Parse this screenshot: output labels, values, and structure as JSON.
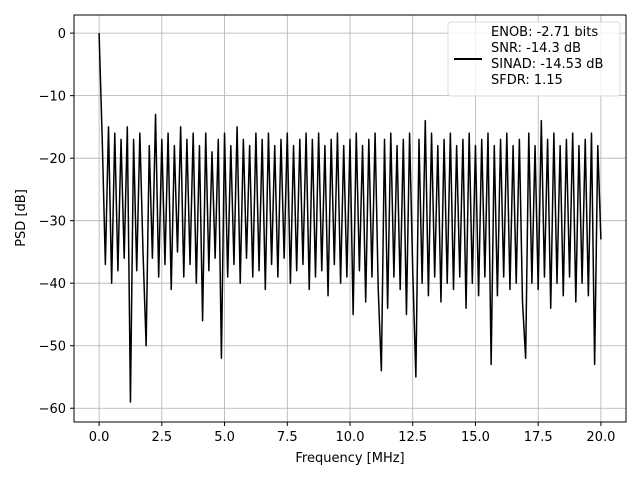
{
  "chart_data": {
    "type": "line",
    "xlabel": "Frequency [MHz]",
    "ylabel": "PSD [dB]",
    "xlim": [
      -1,
      21
    ],
    "ylim": [
      -62.2,
      2.9
    ],
    "grid": true,
    "legend": "upper right",
    "xticks": [
      {
        "value": 0,
        "label": "0.0"
      },
      2.5,
      {
        "value": 5,
        "label": "5.0"
      },
      7.5,
      {
        "value": 10,
        "label": "10.0"
      },
      12.5,
      {
        "value": 15,
        "label": "15.0"
      },
      17.5,
      {
        "value": 20,
        "label": "20.0"
      }
    ],
    "yticks": [
      {
        "value": -60,
        "label": "−60"
      },
      {
        "value": -50,
        "label": "−50"
      },
      {
        "value": -40,
        "label": "−40"
      },
      {
        "value": -30,
        "label": "−30"
      },
      {
        "value": -20,
        "label": "−20"
      },
      {
        "value": -10,
        "label": "−10"
      },
      0
    ],
    "x": [
      0,
      0.125,
      0.25,
      0.375,
      0.5,
      0.625,
      0.75,
      0.875,
      1,
      1.125,
      1.25,
      1.375,
      1.5,
      1.625,
      1.75,
      1.875,
      2,
      2.125,
      2.25,
      2.375,
      2.5,
      2.625,
      2.75,
      2.875,
      3,
      3.125,
      3.25,
      3.375,
      3.5,
      3.625,
      3.75,
      3.875,
      4,
      4.125,
      4.25,
      4.375,
      4.5,
      4.625,
      4.75,
      4.875,
      5,
      5.125,
      5.25,
      5.375,
      5.5,
      5.625,
      5.75,
      5.875,
      6,
      6.125,
      6.25,
      6.375,
      6.5,
      6.625,
      6.75,
      6.875,
      7,
      7.125,
      7.25,
      7.375,
      7.5,
      7.625,
      7.75,
      7.875,
      8,
      8.125,
      8.25,
      8.375,
      8.5,
      8.625,
      8.75,
      8.875,
      9,
      9.125,
      9.25,
      9.375,
      9.5,
      9.625,
      9.75,
      9.875,
      10,
      10.125,
      10.25,
      10.375,
      10.5,
      10.625,
      10.75,
      10.875,
      11,
      11.125,
      11.25,
      11.375,
      11.5,
      11.625,
      11.75,
      11.875,
      12,
      12.125,
      12.25,
      12.375,
      12.5,
      12.625,
      12.75,
      12.875,
      13,
      13.125,
      13.25,
      13.375,
      13.5,
      13.625,
      13.75,
      13.875,
      14,
      14.125,
      14.25,
      14.375,
      14.5,
      14.625,
      14.75,
      14.875,
      15,
      15.125,
      15.25,
      15.375,
      15.5,
      15.625,
      15.75,
      15.875,
      16,
      16.125,
      16.25,
      16.375,
      16.5,
      16.625,
      16.75,
      16.875,
      17,
      17.125,
      17.25,
      17.375,
      17.5,
      17.625,
      17.75,
      17.875,
      18,
      18.125,
      18.25,
      18.375,
      18.5,
      18.625,
      18.75,
      18.875,
      19,
      19.125,
      19.25,
      19.375,
      19.5,
      19.625,
      19.75,
      19.875,
      20
    ],
    "series": [
      {
        "name": "ENOB: -2.71 bits\nSNR: -14.3 dB\nSINAD: -14.53 dB\nSFDR: 1.15",
        "color": "#000000",
        "values": [
          0,
          -17,
          -37,
          -15,
          -40,
          -16,
          -38,
          -17,
          -36,
          -15,
          -59,
          -17,
          -38,
          -16,
          -35,
          -50,
          -18,
          -36,
          -13,
          -39,
          -17,
          -37,
          -16,
          -41,
          -18,
          -35,
          -15,
          -39,
          -17,
          -37,
          -16,
          -40,
          -18,
          -46,
          -16,
          -38,
          -19,
          -36,
          -17,
          -52,
          -16,
          -39,
          -18,
          -37,
          -15,
          -40,
          -17,
          -36,
          -18,
          -39,
          -16,
          -38,
          -17,
          -41,
          -16,
          -37,
          -18,
          -39,
          -17,
          -36,
          -16,
          -40,
          -18,
          -38,
          -17,
          -37,
          -16,
          -41,
          -17,
          -39,
          -16,
          -38,
          -18,
          -42,
          -17,
          -37,
          -16,
          -40,
          -18,
          -39,
          -17,
          -45,
          -16,
          -38,
          -18,
          -43,
          -17,
          -39,
          -16,
          -41,
          -54,
          -17,
          -44,
          -16,
          -39,
          -18,
          -41,
          -17,
          -45,
          -16,
          -38,
          -55,
          -17,
          -40,
          -14,
          -42,
          -16,
          -39,
          -18,
          -43,
          -17,
          -40,
          -16,
          -41,
          -18,
          -39,
          -17,
          -44,
          -16,
          -40,
          -18,
          -42,
          -17,
          -39,
          -16,
          -53,
          -18,
          -42,
          -17,
          -39,
          -16,
          -41,
          -18,
          -40,
          -17,
          -43,
          -52,
          -16,
          -40,
          -18,
          -41,
          -14,
          -39,
          -17,
          -44,
          -16,
          -40,
          -18,
          -42,
          -17,
          -39,
          -16,
          -43,
          -18,
          -40,
          -17,
          -42,
          -16,
          -53,
          -18,
          -33
        ]
      }
    ]
  }
}
